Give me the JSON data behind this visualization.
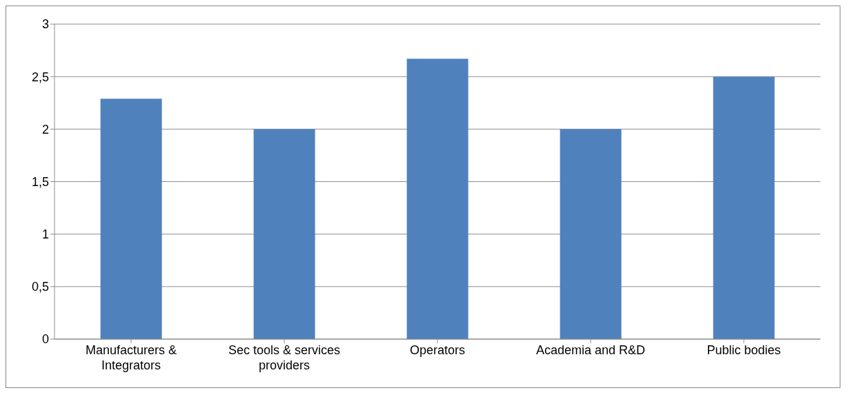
{
  "chart_data": {
    "type": "bar",
    "categories": [
      "Manufacturers & Integrators",
      "Sec tools & services providers",
      "Operators",
      "Academia and R&D",
      "Public bodies"
    ],
    "values": [
      2.29,
      2,
      2.67,
      2,
      2.5
    ],
    "color": "#4f81bd",
    "ylim": [
      0,
      3
    ],
    "yticks": [
      0,
      {
        "value": 0.5,
        "label": "0,5"
      },
      1,
      {
        "value": 1.5,
        "label": "1,5"
      },
      2,
      {
        "value": 2.5,
        "label": "2,5"
      },
      3
    ],
    "grid": "y",
    "legend": false
  }
}
